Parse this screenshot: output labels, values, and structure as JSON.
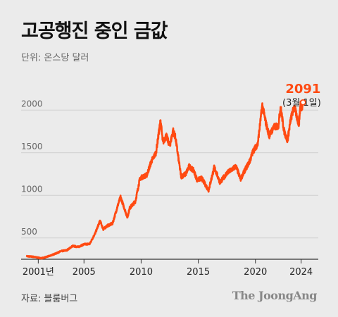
{
  "title": "고공행진 중인 금값",
  "unit_label": "단위: 온스당 달러",
  "source": "자료: 블룸버그",
  "brand": "The JoongAng",
  "colors": {
    "line": "#ff4a12",
    "grid": "#cfcfcf",
    "axis": "#333333",
    "background": "#ebebeb"
  },
  "chart_data": {
    "type": "line",
    "title": "고공행진 중인 금값",
    "ylabel": "단위: 온스당 달러",
    "xlim": [
      1999.5,
      2025.5
    ],
    "ylim": [
      250,
      2300
    ],
    "y_ticks": [
      {
        "value": 500,
        "label": "500"
      },
      {
        "value": 1000,
        "label": "1000"
      },
      {
        "value": 1500,
        "label": "1500"
      },
      {
        "value": 2000,
        "label": "2000"
      }
    ],
    "x_ticks": [
      {
        "value": 2001,
        "label": "2001년"
      },
      {
        "value": 2005,
        "label": "2005"
      },
      {
        "value": 2010,
        "label": "2010"
      },
      {
        "value": 2015,
        "label": "2015"
      },
      {
        "value": 2020,
        "label": "2020"
      },
      {
        "value": 2024,
        "label": "2024"
      }
    ],
    "grid": true,
    "annotation": {
      "value_label": "2091",
      "date_label": "(3월 1일)",
      "x": 2024.17,
      "y": 2091
    },
    "series": [
      {
        "values": [
          [
            2000.0,
            285
          ],
          [
            2000.5,
            280
          ],
          [
            2001.0,
            268
          ],
          [
            2001.3,
            262
          ],
          [
            2001.6,
            272
          ],
          [
            2002.0,
            290
          ],
          [
            2002.5,
            315
          ],
          [
            2003.0,
            345
          ],
          [
            2003.5,
            355
          ],
          [
            2004.0,
            405
          ],
          [
            2004.5,
            395
          ],
          [
            2005.0,
            425
          ],
          [
            2005.5,
            430
          ],
          [
            2006.0,
            560
          ],
          [
            2006.4,
            700
          ],
          [
            2006.7,
            600
          ],
          [
            2007.0,
            640
          ],
          [
            2007.5,
            670
          ],
          [
            2008.0,
            900
          ],
          [
            2008.2,
            980
          ],
          [
            2008.8,
            740
          ],
          [
            2009.0,
            850
          ],
          [
            2009.5,
            930
          ],
          [
            2009.9,
            1200
          ],
          [
            2010.5,
            1240
          ],
          [
            2010.9,
            1400
          ],
          [
            2011.3,
            1500
          ],
          [
            2011.7,
            1880
          ],
          [
            2011.9,
            1620
          ],
          [
            2012.2,
            1700
          ],
          [
            2012.5,
            1580
          ],
          [
            2012.8,
            1760
          ],
          [
            2013.0,
            1680
          ],
          [
            2013.3,
            1400
          ],
          [
            2013.5,
            1220
          ],
          [
            2013.9,
            1250
          ],
          [
            2014.2,
            1340
          ],
          [
            2014.6,
            1290
          ],
          [
            2014.9,
            1180
          ],
          [
            2015.3,
            1200
          ],
          [
            2015.9,
            1060
          ],
          [
            2016.4,
            1330
          ],
          [
            2016.9,
            1150
          ],
          [
            2017.5,
            1260
          ],
          [
            2017.9,
            1300
          ],
          [
            2018.3,
            1340
          ],
          [
            2018.7,
            1190
          ],
          [
            2019.1,
            1300
          ],
          [
            2019.5,
            1400
          ],
          [
            2019.8,
            1520
          ],
          [
            2020.2,
            1600
          ],
          [
            2020.6,
            2060
          ],
          [
            2020.9,
            1860
          ],
          [
            2021.2,
            1700
          ],
          [
            2021.6,
            1800
          ],
          [
            2022.0,
            1810
          ],
          [
            2022.2,
            2040
          ],
          [
            2022.5,
            1760
          ],
          [
            2022.8,
            1640
          ],
          [
            2023.1,
            1900
          ],
          [
            2023.4,
            2040
          ],
          [
            2023.8,
            1830
          ],
          [
            2023.95,
            2080
          ],
          [
            2024.05,
            2030
          ],
          [
            2024.17,
            2091
          ]
        ]
      }
    ]
  }
}
